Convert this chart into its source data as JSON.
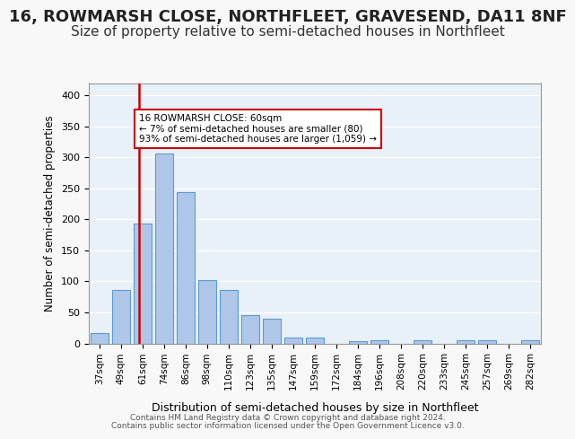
{
  "title1": "16, ROWMARSH CLOSE, NORTHFLEET, GRAVESEND, DA11 8NF",
  "title2": "Size of property relative to semi-detached houses in Northfleet",
  "xlabel": "Distribution of semi-detached houses by size in Northfleet",
  "ylabel": "Number of semi-detached properties",
  "categories": [
    "37sqm",
    "49sqm",
    "61sqm",
    "74sqm",
    "86sqm",
    "98sqm",
    "110sqm",
    "123sqm",
    "135sqm",
    "147sqm",
    "159sqm",
    "172sqm",
    "184sqm",
    "196sqm",
    "208sqm",
    "220sqm",
    "233sqm",
    "245sqm",
    "257sqm",
    "269sqm",
    "282sqm"
  ],
  "values": [
    16,
    86,
    193,
    307,
    244,
    102,
    86,
    45,
    40,
    10,
    10,
    0,
    4,
    5,
    0,
    5,
    0,
    5,
    5,
    0,
    5
  ],
  "bar_color": "#aec6e8",
  "bar_edge_color": "#5b9bd5",
  "redline_x": 1.5,
  "annotation_text": "16 ROWMARSH CLOSE: 60sqm\n← 7% of semi-detached houses are smaller (80)\n93% of semi-detached houses are larger (1,059) →",
  "annotation_box_color": "#ffffff",
  "annotation_box_edge": "#cc0000",
  "redline_color": "#cc0000",
  "footer1": "Contains HM Land Registry data © Crown copyright and database right 2024.",
  "footer2": "Contains public sector information licensed under the Open Government Licence v3.0.",
  "ylim": [
    0,
    420
  ],
  "yticks": [
    0,
    50,
    100,
    150,
    200,
    250,
    300,
    350,
    400
  ],
  "bg_color": "#e8f0f8",
  "grid_color": "#ffffff",
  "title1_fontsize": 13,
  "title2_fontsize": 11
}
